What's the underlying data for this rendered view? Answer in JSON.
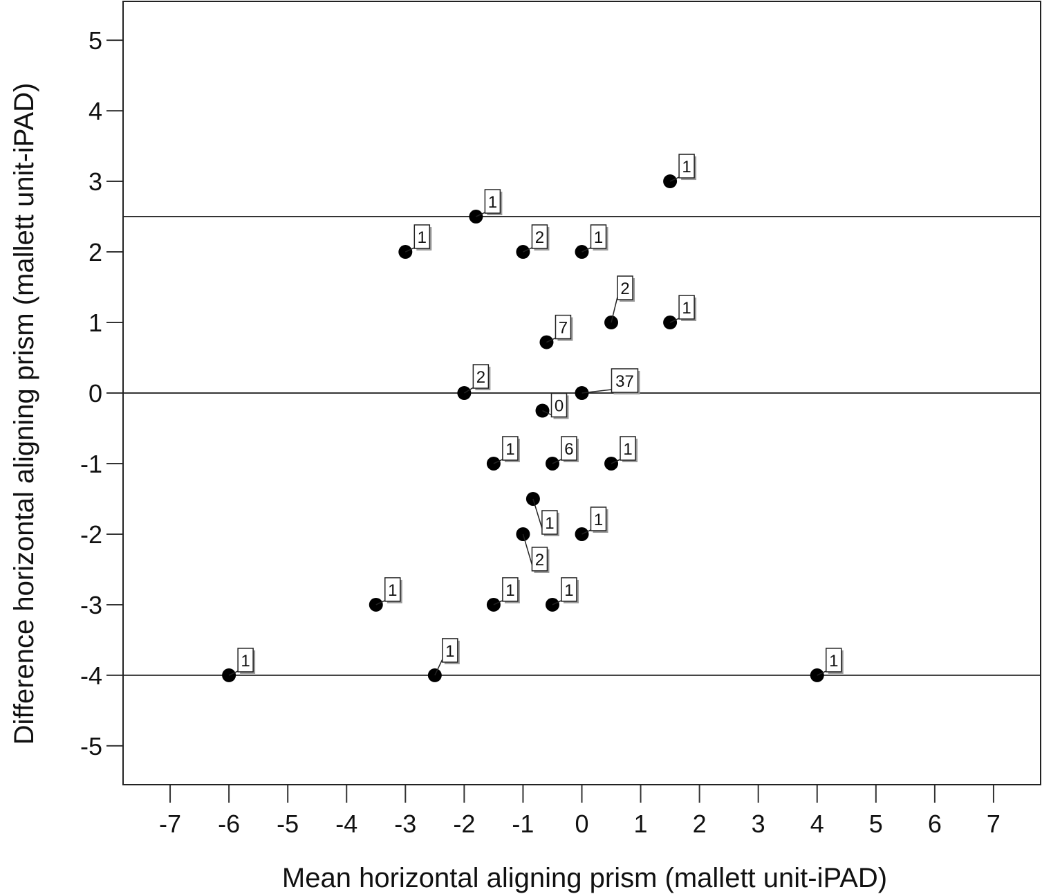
{
  "chart_data": {
    "type": "scatter",
    "title": "",
    "xlabel": "Mean horizontal aligning prism (mallett unit-iPAD)",
    "ylabel": "Difference horizontal aligning prism (mallett unit-iPAD)",
    "xlim": [
      -7.8,
      7.8
    ],
    "ylim": [
      -5.55,
      5.55
    ],
    "x_ticks": [
      -7,
      -6,
      -5,
      -4,
      -3,
      -2,
      -1,
      0,
      1,
      2,
      3,
      4,
      5,
      6,
      7
    ],
    "y_ticks": [
      5,
      4,
      3,
      2,
      1,
      0,
      -1,
      -2,
      -3,
      -4,
      -5
    ],
    "x_tick_labels": [
      "-7",
      "-6",
      "-5",
      "-4",
      "-3",
      "-2",
      "-1",
      "0",
      "1",
      "2",
      "3",
      "4",
      "5",
      "6",
      "7"
    ],
    "y_tick_labels": [
      "5",
      "4",
      "3",
      "2",
      "1",
      "0",
      "-1",
      "-2",
      "-3",
      "-4",
      "-5"
    ],
    "grid": false,
    "reference_lines": [
      2.5,
      0,
      -4
    ],
    "points": [
      {
        "x": 1.5,
        "y": 3,
        "label": "1"
      },
      {
        "x": -1.8,
        "y": 2.5,
        "label": "1"
      },
      {
        "x": -3,
        "y": 2,
        "label": "1"
      },
      {
        "x": -1,
        "y": 2,
        "label": "2"
      },
      {
        "x": 0,
        "y": 2,
        "label": "1"
      },
      {
        "x": 0.5,
        "y": 1,
        "label": "2"
      },
      {
        "x": 1.5,
        "y": 1,
        "label": "1"
      },
      {
        "x": -0.6,
        "y": 0.72,
        "label": "7"
      },
      {
        "x": -2,
        "y": 0,
        "label": "2"
      },
      {
        "x": 0,
        "y": 0,
        "label": "37"
      },
      {
        "x": -0.67,
        "y": -0.25,
        "label": "0"
      },
      {
        "x": -1.5,
        "y": -1,
        "label": "1"
      },
      {
        "x": -0.5,
        "y": -1,
        "label": "6"
      },
      {
        "x": 0.5,
        "y": -1,
        "label": "1"
      },
      {
        "x": -0.83,
        "y": -1.5,
        "label": "1"
      },
      {
        "x": -1,
        "y": -2,
        "label": "2"
      },
      {
        "x": 0,
        "y": -2,
        "label": "1"
      },
      {
        "x": -3.5,
        "y": -3,
        "label": "1"
      },
      {
        "x": -1.5,
        "y": -3,
        "label": "1"
      },
      {
        "x": -0.5,
        "y": -3,
        "label": "1"
      },
      {
        "x": -6,
        "y": -4,
        "label": "1"
      },
      {
        "x": -2.5,
        "y": -4,
        "label": "1"
      },
      {
        "x": 4,
        "y": -4,
        "label": "1"
      }
    ]
  }
}
